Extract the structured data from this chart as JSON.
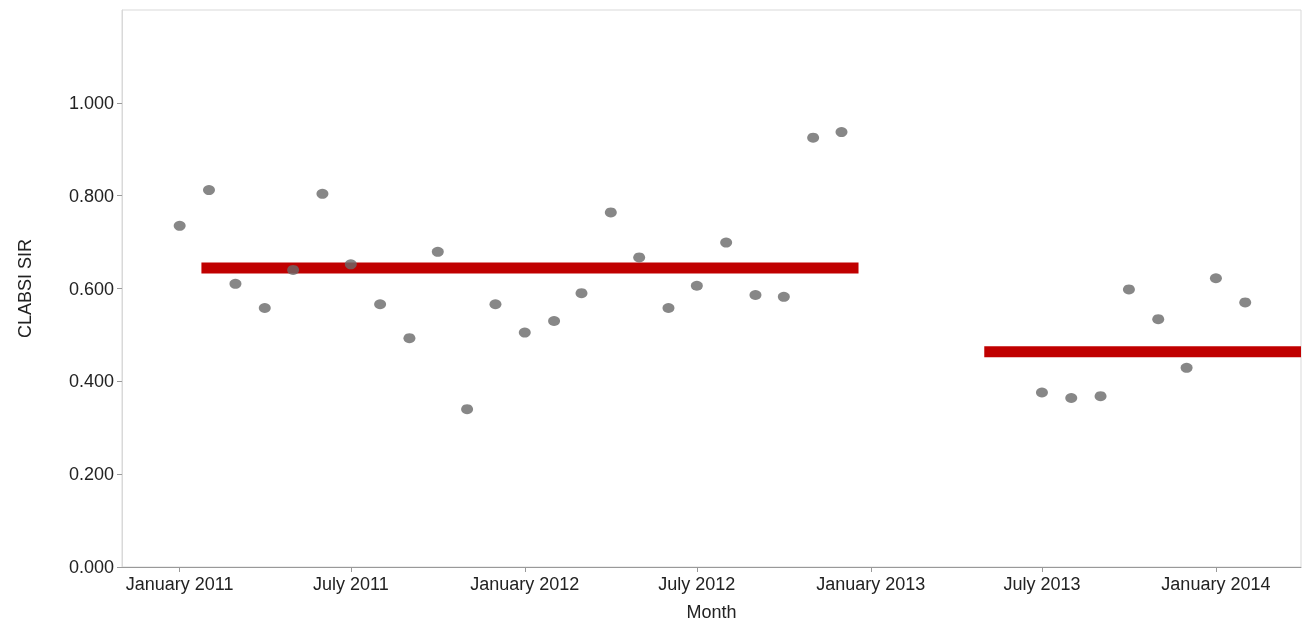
{
  "chart_data": {
    "type": "scatter",
    "xlabel": "Month",
    "ylabel": "CLABSI SIR",
    "xlim": [
      "2010-11",
      "2014-04"
    ],
    "xticks": [
      {
        "value": "2011-01",
        "label": "January 2011"
      },
      {
        "value": "2011-07",
        "label": "July 2011"
      },
      {
        "value": "2012-01",
        "label": "January 2012"
      },
      {
        "value": "2012-07",
        "label": "July 2012"
      },
      {
        "value": "2013-01",
        "label": "January 2013"
      },
      {
        "value": "2013-07",
        "label": "July 2013"
      },
      {
        "value": "2014-01",
        "label": "January 2014"
      }
    ],
    "ylim": [
      0,
      1.2
    ],
    "yticks": [
      {
        "value": 0,
        "label": "0.000"
      },
      {
        "value": 0.2,
        "label": "0.200"
      },
      {
        "value": 0.4,
        "label": "0.400"
      },
      {
        "value": 0.6,
        "label": "0.600"
      },
      {
        "value": 0.8,
        "label": "0.800"
      },
      {
        "value": 1,
        "label": "1.000"
      }
    ],
    "grid": false,
    "marker": "circle",
    "series": [
      {
        "color": "#696969",
        "x": [
          "2011-01",
          "2011-02",
          "2011-03",
          "2011-04",
          "2011-05",
          "2011-06",
          "2011-07",
          "2011-08",
          "2011-09",
          "2011-10",
          "2011-11",
          "2011-12",
          "2012-01",
          "2012-02",
          "2012-03",
          "2012-04",
          "2012-05",
          "2012-06",
          "2012-07",
          "2012-08",
          "2012-09",
          "2012-10",
          "2012-11",
          "2012-12",
          "2013-07",
          "2013-08",
          "2013-09",
          "2013-10",
          "2013-11",
          "2013-12",
          "2014-01",
          "2014-02"
        ],
        "values": [
          0.735,
          0.812,
          0.61,
          0.558,
          0.64,
          0.804,
          0.652,
          0.566,
          0.493,
          0.679,
          0.34,
          0.566,
          0.505,
          0.53,
          0.59,
          0.764,
          0.667,
          0.558,
          0.606,
          0.699,
          0.586,
          0.582,
          0.925,
          0.937,
          0.376,
          0.364,
          0.368,
          0.598,
          0.534,
          0.429,
          0.622,
          0.57
        ]
      },
      {
        "type": "line",
        "color": "#c00000",
        "marker": "none",
        "x": [
          "2011-01-24",
          "2012-12-19"
        ],
        "values": [
          0.644,
          0.644
        ]
      },
      {
        "type": "line",
        "color": "#c00000",
        "marker": "none",
        "x": [
          "2013-05-01",
          "2014-04-01"
        ],
        "values": [
          0.464,
          0.464
        ]
      }
    ]
  }
}
